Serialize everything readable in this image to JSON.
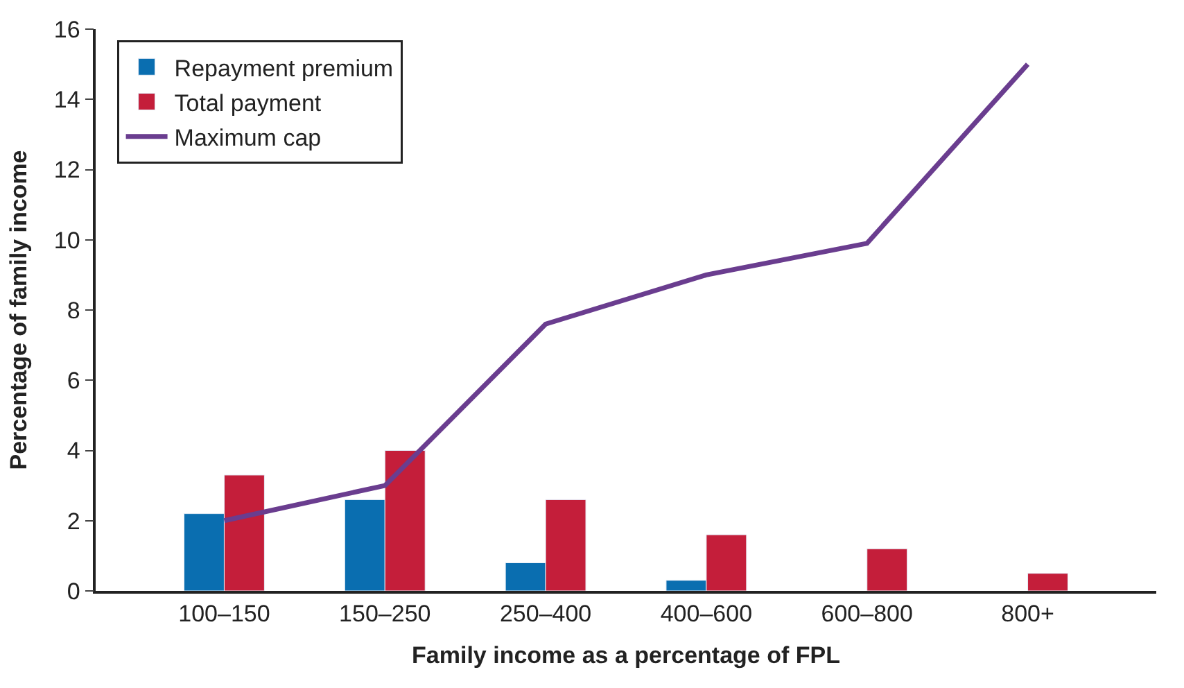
{
  "chart_data": {
    "type": "bar",
    "xlabel": "Family income as a percentage of FPL",
    "ylabel": "Percentage of family income",
    "categories": [
      "100–150",
      "150–250",
      "250–400",
      "400–600",
      "600–800",
      "800+"
    ],
    "series": [
      {
        "name": "Repayment premium",
        "color": "#0a6eb0",
        "values": [
          2.2,
          2.6,
          0.8,
          0.3,
          null,
          null
        ]
      },
      {
        "name": "Total payment",
        "color": "#c41e3a",
        "values": [
          3.3,
          4.0,
          2.6,
          1.6,
          1.2,
          0.5
        ]
      },
      {
        "name": "Maximum cap",
        "type": "line",
        "color": "#6a3d8f",
        "values": [
          2.0,
          3.0,
          7.6,
          9.0,
          9.9,
          15.0
        ]
      }
    ],
    "ylim": [
      0,
      16
    ],
    "yticks": [
      0,
      2,
      4,
      6,
      8,
      10,
      12,
      14,
      16
    ],
    "legend": "top left",
    "marker": "none",
    "line_style": "solid"
  }
}
